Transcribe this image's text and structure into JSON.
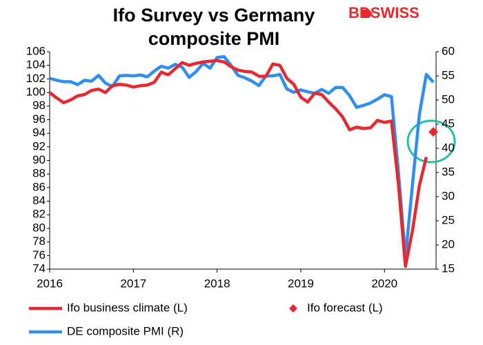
{
  "chart_data": {
    "type": "line",
    "title": [
      "Ifo Survey vs Germany",
      "composite PMI"
    ],
    "logo": "BDSWISS",
    "categories": [
      "2016",
      null,
      null,
      null,
      null,
      null,
      null,
      null,
      null,
      null,
      null,
      null,
      "2017",
      null,
      null,
      null,
      null,
      null,
      null,
      null,
      null,
      null,
      null,
      null,
      "2018",
      null,
      null,
      null,
      null,
      null,
      null,
      null,
      null,
      null,
      null,
      null,
      "2019",
      null,
      null,
      null,
      null,
      null,
      null,
      null,
      null,
      null,
      null,
      null,
      "2020",
      null,
      null,
      null,
      null,
      null,
      null,
      null
    ],
    "series": [
      {
        "name": "Ifo business climate (L)",
        "color": "#e8282e",
        "axis": "y",
        "style": "line",
        "values": [
          100.0,
          99.2,
          98.5,
          98.9,
          99.5,
          99.7,
          100.3,
          100.5,
          100.0,
          101.0,
          101.2,
          101.1,
          100.8,
          101.0,
          101.1,
          101.5,
          103.0,
          102.6,
          103.5,
          104.4,
          104.0,
          104.3,
          104.5,
          104.6,
          104.7,
          104.5,
          103.8,
          103.3,
          103.1,
          103.0,
          102.4,
          102.4,
          104.2,
          104.0,
          102.1,
          101.2,
          99.3,
          98.6,
          99.9,
          99.7,
          98.6,
          97.6,
          96.4,
          94.5,
          94.9,
          94.7,
          94.8,
          95.9,
          95.6,
          95.8,
          86.5,
          74.4,
          79.6,
          86.3,
          90.5,
          null
        ]
      },
      {
        "name": "Ifo forecast (L)",
        "color": "#e8282e",
        "axis": "y",
        "style": "marker",
        "values": [
          null,
          null,
          null,
          null,
          null,
          null,
          null,
          null,
          null,
          null,
          null,
          null,
          null,
          null,
          null,
          null,
          null,
          null,
          null,
          null,
          null,
          null,
          null,
          null,
          null,
          null,
          null,
          null,
          null,
          null,
          null,
          null,
          null,
          null,
          null,
          null,
          null,
          null,
          null,
          null,
          null,
          null,
          null,
          null,
          null,
          null,
          null,
          null,
          null,
          null,
          null,
          null,
          null,
          null,
          null,
          94.2
        ]
      },
      {
        "name": "DE composite PMI (R)",
        "color": "#2e8ff0",
        "axis": "y2",
        "style": "line",
        "values": [
          54.5,
          54.1,
          53.8,
          53.8,
          53.2,
          54.1,
          53.9,
          55.1,
          53.5,
          52.8,
          55.0,
          55.1,
          55.0,
          55.2,
          54.8,
          56.0,
          57.0,
          56.6,
          57.4,
          56.8,
          54.7,
          55.9,
          57.6,
          56.6,
          58.8,
          59.0,
          57.2,
          55.1,
          54.6,
          53.9,
          53.0,
          55.0,
          55.0,
          55.3,
          52.3,
          51.6,
          52.1,
          51.7,
          51.4,
          52.2,
          51.4,
          52.6,
          52.6,
          50.9,
          48.5,
          48.9,
          49.4,
          50.2,
          51.1,
          50.7,
          35.0,
          17.4,
          32.3,
          47.0,
          55.3,
          53.7
        ]
      }
    ],
    "ylim": [
      74,
      106
    ],
    "yticks": [
      74,
      76,
      78,
      80,
      82,
      84,
      86,
      88,
      90,
      92,
      94,
      96,
      98,
      100,
      102,
      104,
      106
    ],
    "y2lim": [
      15,
      60
    ],
    "y2ticks": [
      15,
      20,
      25,
      30,
      35,
      40,
      45,
      50,
      55,
      60
    ],
    "grid": false
  }
}
